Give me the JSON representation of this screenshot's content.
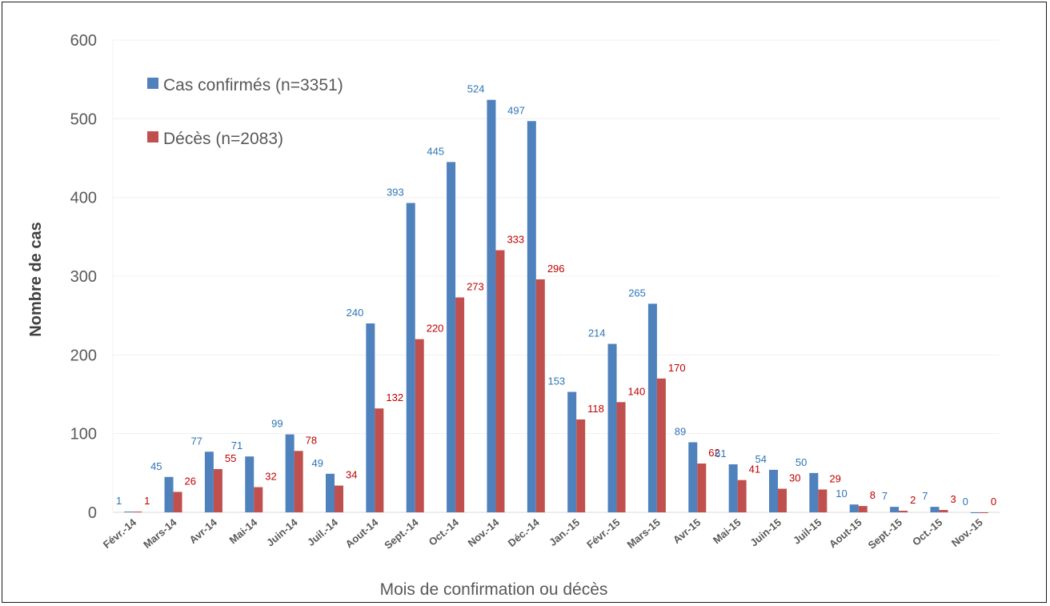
{
  "chart_data": {
    "type": "bar",
    "title": "",
    "xlabel": "Mois de confirmation ou décès",
    "ylabel": "Nombre de cas",
    "ylim": [
      0,
      600
    ],
    "yticks": [
      0,
      100,
      200,
      300,
      400,
      500,
      600
    ],
    "grid": true,
    "legend": "top-left",
    "categories": [
      "Févr.-14",
      "Mars-14",
      "Avr-14",
      "Mai-14",
      "Juin-14",
      "Juil.-14",
      "Aout-14",
      "Sept.-14",
      "Oct.-14",
      "Nov.-14",
      "Déc.-14",
      "Jan.-15",
      "Févr.-15",
      "Mars-15",
      "Avr-15",
      "Mai-15",
      "Juin-15",
      "Juil-15",
      "Aout-15",
      "Sept.-15",
      "Oct.-15",
      "Nov.-15"
    ],
    "series": [
      {
        "name": "Cas confirmés (n=3351)",
        "color": "#4f81bd",
        "label_color": "#2e75b6",
        "values": [
          1,
          45,
          77,
          71,
          99,
          49,
          240,
          393,
          445,
          524,
          497,
          153,
          214,
          265,
          89,
          61,
          54,
          50,
          10,
          7,
          7,
          0
        ]
      },
      {
        "name": "Décès (n=2083)",
        "color": "#c0504d",
        "label_color": "#c00000",
        "values": [
          1,
          26,
          55,
          32,
          78,
          34,
          132,
          220,
          273,
          333,
          296,
          118,
          140,
          170,
          62,
          41,
          30,
          29,
          8,
          2,
          3,
          0
        ]
      }
    ]
  }
}
